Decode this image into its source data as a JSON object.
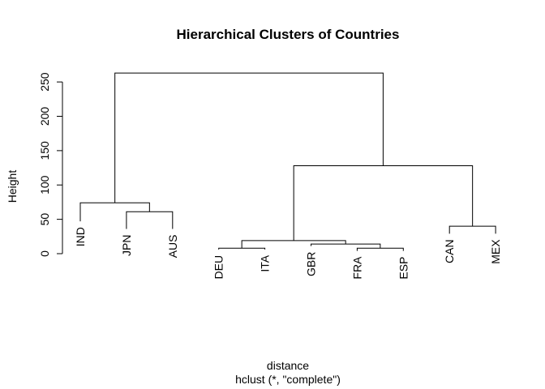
{
  "chart_data": {
    "type": "dendrogram",
    "title": "Hierarchical Clusters of Countries",
    "ylabel": "Height",
    "xlabel": "distance",
    "subtitle": "hclust (*, \"complete\")",
    "ylim": [
      0,
      260
    ],
    "yticks": [
      0,
      50,
      100,
      150,
      200,
      250
    ],
    "ytick_labels": [
      "0",
      "50",
      "100",
      "150",
      "200",
      "250"
    ],
    "leaves": [
      "IND",
      "JPN",
      "AUS",
      "DEU",
      "ITA",
      "GBR",
      "FRA",
      "ESP",
      "CAN",
      "MEX"
    ],
    "leaf_heights": [
      {
        "label": "IND",
        "height": 47
      },
      {
        "label": "JPN",
        "height": 36
      },
      {
        "label": "AUS",
        "height": 36
      },
      {
        "label": "DEU",
        "height": 6
      },
      {
        "label": "ITA",
        "height": 6
      },
      {
        "label": "GBR",
        "height": 11
      },
      {
        "label": "FRA",
        "height": 4
      },
      {
        "label": "ESP",
        "height": 4
      },
      {
        "label": "CAN",
        "height": 29
      },
      {
        "label": "MEX",
        "height": 29
      }
    ],
    "merges": [
      {
        "id": "m1",
        "left": "FRA",
        "right": "ESP",
        "height": 8
      },
      {
        "id": "m2",
        "left": "DEU",
        "right": "ITA",
        "height": 8
      },
      {
        "id": "m3",
        "left": "GBR",
        "right": "m1",
        "height": 14
      },
      {
        "id": "m4",
        "left": "m2",
        "right": "m3",
        "height": 19
      },
      {
        "id": "m5",
        "left": "CAN",
        "right": "MEX",
        "height": 40
      },
      {
        "id": "m6",
        "left": "JPN",
        "right": "AUS",
        "height": 61
      },
      {
        "id": "m7",
        "left": "IND",
        "right": "m6",
        "height": 74
      },
      {
        "id": "m8",
        "left": "m4",
        "right": "m5",
        "height": 128
      },
      {
        "id": "m9",
        "left": "m7",
        "right": "m8",
        "height": 263
      }
    ]
  }
}
